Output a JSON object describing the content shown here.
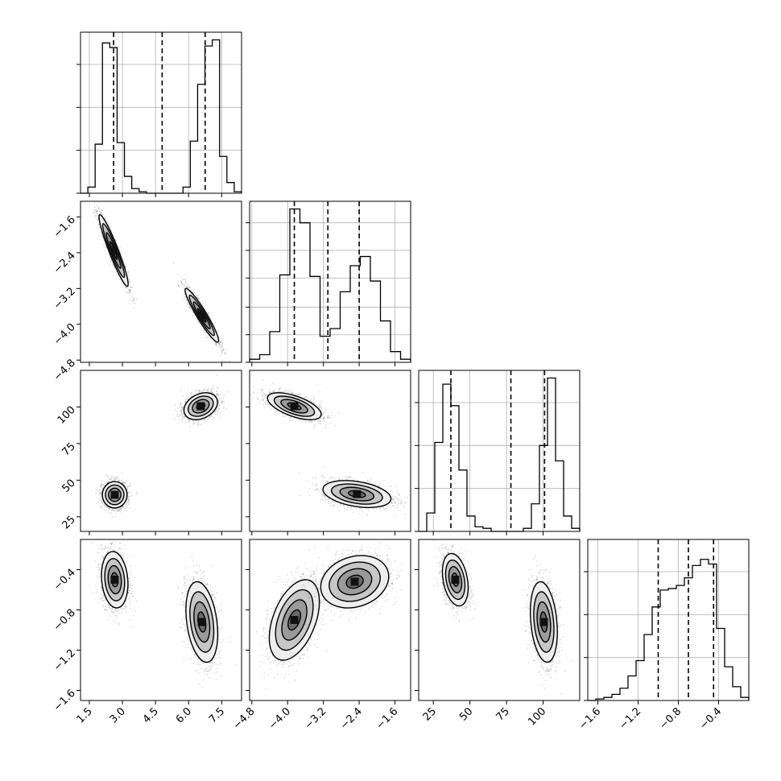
{
  "chart_data": {
    "type": "corner",
    "parameters": [
      {
        "range": [
          1.1,
          8.4
        ],
        "ticks": [
          1.5,
          3.0,
          4.5,
          6.0,
          7.5
        ],
        "tick_labels": [
          "1.5",
          "3.0",
          "4.5",
          "6.0",
          "7.5"
        ],
        "quantiles": [
          2.6,
          4.8,
          6.75
        ],
        "histogram": [
          0.0,
          0.04,
          0.32,
          0.98,
          0.95,
          0.33,
          0.11,
          0.03,
          0.01,
          0.0,
          0.0,
          0.0,
          0.0,
          0.0,
          0.04,
          0.34,
          0.71,
          0.96,
          1.0,
          0.24,
          0.07,
          0.01
        ]
      },
      {
        "range": [
          -4.85,
          -1.25
        ],
        "ticks": [
          -4.8,
          -4.0,
          -3.2,
          -2.4,
          -1.6
        ],
        "tick_labels": [
          "−4.8",
          "−4.0",
          "−3.2",
          "−2.4",
          "−1.6"
        ],
        "quantiles": [
          -3.85,
          -3.1,
          -2.4
        ],
        "histogram": [
          0.02,
          0.05,
          0.2,
          0.57,
          1.0,
          0.91,
          0.56,
          0.17,
          0.22,
          0.46,
          0.63,
          0.69,
          0.53,
          0.27,
          0.07,
          0.02
        ]
      },
      {
        "range": [
          15,
          125
        ],
        "ticks": [
          25,
          50,
          75,
          100
        ],
        "tick_labels": [
          "25",
          "50",
          "75",
          "100"
        ],
        "quantiles": [
          37,
          78,
          101
        ],
        "histogram": [
          0.0,
          0.12,
          0.58,
          0.96,
          0.82,
          0.4,
          0.1,
          0.03,
          0.02,
          0.0,
          0.0,
          0.0,
          0.0,
          0.02,
          0.18,
          0.56,
          1.0,
          0.46,
          0.1,
          0.02
        ]
      },
      {
        "range": [
          -1.7,
          -0.1
        ],
        "ticks": [
          -1.6,
          -1.2,
          -0.8,
          -0.4
        ],
        "tick_labels": [
          "−1.6",
          "−1.2",
          "−0.8",
          "−0.4"
        ],
        "quantiles": [
          -1.0,
          -0.7,
          -0.45
        ],
        "histogram": [
          0.0,
          0.01,
          0.02,
          0.04,
          0.08,
          0.16,
          0.26,
          0.43,
          0.61,
          0.72,
          0.73,
          0.75,
          0.8,
          0.88,
          0.92,
          0.89,
          0.47,
          0.22,
          0.09,
          0.02
        ]
      }
    ],
    "diagonal_y_ticks": [
      [
        0.0,
        0.28,
        0.56,
        0.84
      ],
      [
        0.0,
        0.18,
        0.36,
        0.55,
        0.73,
        0.91
      ],
      [
        0.0,
        0.28,
        0.56,
        0.84
      ],
      [
        0.0,
        0.28,
        0.56,
        0.84
      ]
    ],
    "pairs": [
      {
        "x": 0,
        "y": 1,
        "clusters": [
          {
            "cx": 2.6,
            "cy": -2.35,
            "sx": 0.33,
            "sy": 0.4,
            "rho": -0.94,
            "n": 1700
          },
          {
            "cx": 6.6,
            "cy": -3.8,
            "sx": 0.38,
            "sy": 0.3,
            "rho": -0.94,
            "n": 1700
          }
        ]
      },
      {
        "x": 0,
        "y": 2,
        "clusters": [
          {
            "cx": 2.65,
            "cy": 40,
            "sx": 0.28,
            "sy": 4.5,
            "rho": 0.0,
            "n": 1700
          },
          {
            "cx": 6.55,
            "cy": 100.5,
            "sx": 0.38,
            "sy": 4.6,
            "rho": 0.3,
            "n": 1700
          }
        ]
      },
      {
        "x": 0,
        "y": 3,
        "clusters": [
          {
            "cx": 2.65,
            "cy": -0.5,
            "sx": 0.3,
            "sy": 0.14,
            "rho": -0.15,
            "n": 1700
          },
          {
            "cx": 6.6,
            "cy": -0.92,
            "sx": 0.36,
            "sy": 0.2,
            "rho": -0.3,
            "n": 1700
          }
        ]
      },
      {
        "x": 1,
        "y": 2,
        "clusters": [
          {
            "cx": -3.85,
            "cy": 100.5,
            "sx": 0.3,
            "sy": 4.6,
            "rho": -0.6,
            "n": 1700
          },
          {
            "cx": -2.45,
            "cy": 40.5,
            "sx": 0.38,
            "sy": 4.6,
            "rho": -0.35,
            "n": 1700
          }
        ]
      },
      {
        "x": 1,
        "y": 3,
        "clusters": [
          {
            "cx": -3.85,
            "cy": -0.9,
            "sx": 0.28,
            "sy": 0.2,
            "rho": 0.45,
            "n": 1700
          },
          {
            "cx": -2.5,
            "cy": -0.52,
            "sx": 0.38,
            "sy": 0.13,
            "rho": 0.2,
            "n": 1700
          }
        ]
      },
      {
        "x": 2,
        "y": 3,
        "clusters": [
          {
            "cx": 40,
            "cy": -0.5,
            "sx": 4.4,
            "sy": 0.13,
            "rho": -0.3,
            "n": 1700
          },
          {
            "cx": 100.5,
            "cy": -0.92,
            "sx": 4.6,
            "sy": 0.2,
            "rho": -0.25,
            "n": 1700
          }
        ]
      }
    ],
    "contour_levels_sigma": [
      0.5,
      1.0,
      1.5,
      2.0
    ],
    "grid": true
  }
}
